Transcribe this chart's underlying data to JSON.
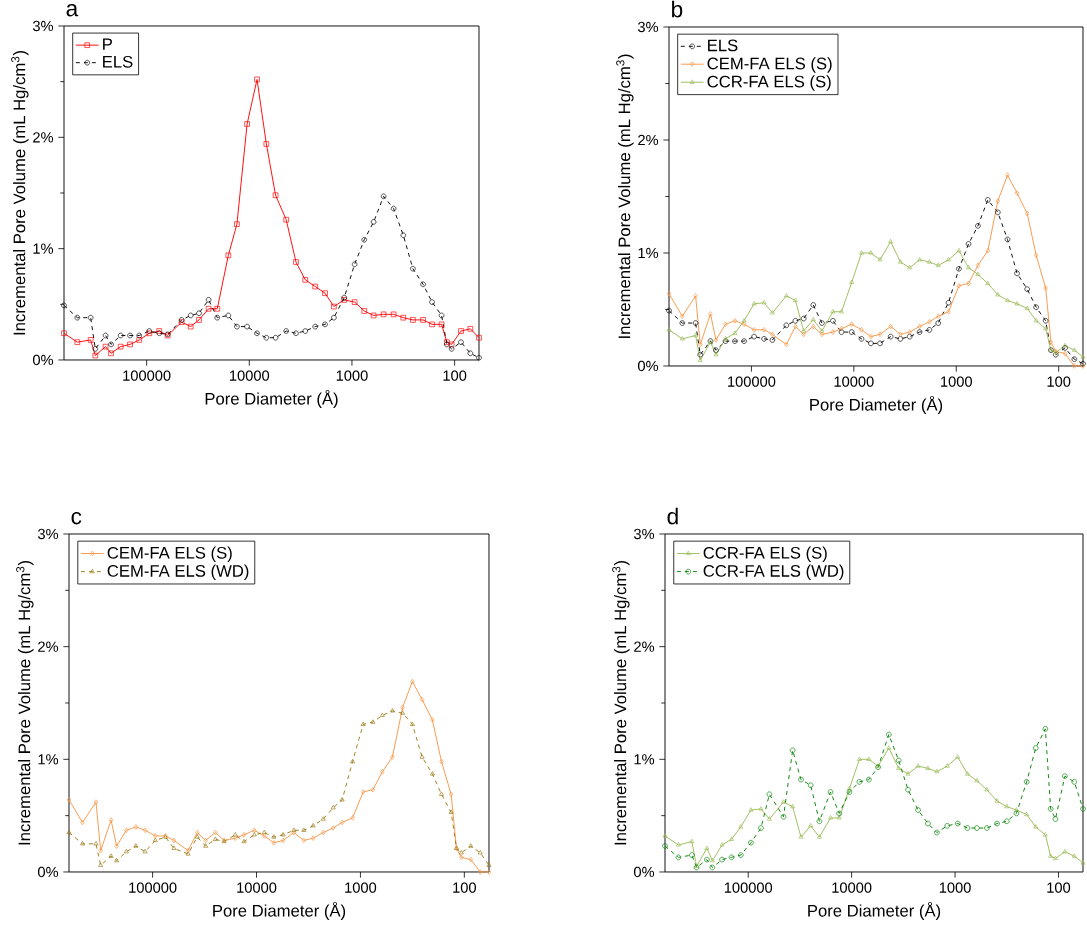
{
  "chart_data": [
    {
      "type": "line",
      "title": "a",
      "xlabel": "Pore Diameter (Å)",
      "ylabel": "Incremental Pore Volume (mL Hg/cm$^{3}$)",
      "log": "x",
      "legend": "top left",
      "x": [
        638000,
        473000,
        351000,
        316000,
        251000,
        222000,
        179000,
        145000,
        118000,
        94200,
        75300,
        62400,
        45600,
        37200,
        30900,
        24900,
        20500,
        16000,
        13200,
        10500,
        8410,
        6820,
        5550,
        4370,
        3510,
        2850,
        2280,
        1830,
        1500,
        1190,
        942,
        759,
        615,
        492,
        393,
        316,
        255,
        203,
        166,
        134,
        119,
        107,
        86.7,
        70.3,
        57.9
      ],
      "xlim": [
        638000,
        57.9
      ],
      "xticks": [
        100000,
        10000,
        1000,
        100
      ],
      "ylim": [
        0,
        3
      ],
      "yticks": [
        {
          "value": 0,
          "label": "0%"
        },
        {
          "value": 1,
          "label": "1%"
        },
        {
          "value": 2,
          "label": "2%"
        },
        {
          "value": 3,
          "label": "3%"
        }
      ],
      "series": [
        {
          "name": "P",
          "color": "#ff0000",
          "marker": "square",
          "line_style": "solid",
          "values": [
            0.24,
            0.16,
            0.18,
            0.04,
            0.12,
            0.06,
            0.12,
            0.14,
            0.18,
            0.24,
            0.26,
            0.22,
            0.34,
            0.3,
            0.36,
            0.46,
            0.46,
            0.94,
            1.22,
            2.12,
            2.52,
            1.94,
            1.48,
            1.26,
            0.88,
            0.72,
            0.66,
            0.6,
            0.48,
            0.54,
            0.52,
            0.44,
            0.4,
            0.41,
            0.41,
            0.38,
            0.36,
            0.36,
            0.32,
            0.32,
            0.16,
            0.14,
            0.26,
            0.28,
            0.2
          ]
        },
        {
          "name": "ELS",
          "color": "#000000",
          "marker": "circle",
          "line_style": "dashed",
          "values": [
            0.49,
            0.38,
            0.38,
            0.1,
            0.22,
            0.14,
            0.22,
            0.22,
            0.22,
            0.26,
            0.24,
            0.23,
            0.36,
            0.4,
            0.42,
            0.54,
            0.38,
            0.4,
            0.3,
            0.3,
            0.24,
            0.2,
            0.2,
            0.26,
            0.24,
            0.26,
            0.3,
            0.32,
            0.38,
            0.56,
            0.86,
            1.08,
            1.24,
            1.47,
            1.36,
            1.12,
            0.82,
            0.68,
            0.52,
            0.4,
            0.14,
            0.1,
            0.16,
            0.06,
            0.02
          ]
        }
      ]
    },
    {
      "type": "line",
      "title": "b",
      "xlabel": "Pore Diameter (Å)",
      "ylabel": "Incremental Pore Volume (mL Hg/cm$^{3}$)",
      "log": "x",
      "legend": "top left",
      "x": [
        638000,
        473000,
        351000,
        316000,
        251000,
        222000,
        179000,
        145000,
        118000,
        94200,
        75300,
        62400,
        45600,
        37200,
        30900,
        24900,
        20500,
        16000,
        13200,
        10500,
        8410,
        6820,
        5550,
        4370,
        3510,
        2850,
        2280,
        1830,
        1500,
        1190,
        942,
        759,
        615,
        492,
        393,
        316,
        255,
        203,
        166,
        134,
        119,
        107,
        86.7,
        70.3,
        57.9
      ],
      "xlim": [
        638000,
        57.9
      ],
      "xticks": [
        100000,
        10000,
        1000,
        100
      ],
      "ylim": [
        0,
        3
      ],
      "yticks": [
        {
          "value": 0,
          "label": "0%"
        },
        {
          "value": 1,
          "label": "1%"
        },
        {
          "value": 2,
          "label": "2%"
        },
        {
          "value": 3,
          "label": "3%"
        }
      ],
      "series": [
        {
          "name": "ELS",
          "color": "#000000",
          "marker": "circle",
          "line_style": "dashed",
          "values": [
            0.49,
            0.38,
            0.38,
            0.1,
            0.22,
            0.14,
            0.22,
            0.22,
            0.22,
            0.26,
            0.24,
            0.23,
            0.36,
            0.4,
            0.42,
            0.54,
            0.38,
            0.4,
            0.3,
            0.3,
            0.24,
            0.2,
            0.2,
            0.26,
            0.24,
            0.26,
            0.3,
            0.32,
            0.38,
            0.56,
            0.86,
            1.08,
            1.24,
            1.47,
            1.36,
            1.12,
            0.82,
            0.68,
            0.52,
            0.4,
            0.14,
            0.1,
            0.16,
            0.06,
            0.02
          ]
        },
        {
          "name": "CEM-FA ELS (S)",
          "color": "#f79646",
          "marker": "diamond",
          "line_style": "solid",
          "values": [
            0.64,
            0.44,
            0.62,
            0.19,
            0.46,
            0.23,
            0.37,
            0.4,
            0.37,
            0.32,
            0.32,
            0.28,
            0.19,
            0.35,
            0.28,
            0.35,
            0.28,
            0.3,
            0.33,
            0.37,
            0.32,
            0.26,
            0.28,
            0.35,
            0.28,
            0.3,
            0.35,
            0.39,
            0.44,
            0.48,
            0.71,
            0.73,
            0.89,
            1.02,
            1.46,
            1.69,
            1.53,
            1.35,
            0.98,
            0.69,
            0.21,
            0.13,
            0.11,
            0,
            0
          ]
        },
        {
          "name": "CCR-FA ELS (S)",
          "color": "#9bbb59",
          "marker": "triangle",
          "line_style": "solid",
          "values": [
            0.32,
            0.24,
            0.27,
            0.05,
            0.21,
            0.1,
            0.24,
            0.29,
            0.4,
            0.55,
            0.56,
            0.47,
            0.62,
            0.58,
            0.31,
            0.41,
            0.31,
            0.48,
            0.48,
            0.74,
            1.0,
            1.0,
            0.94,
            1.1,
            0.92,
            0.87,
            0.94,
            0.92,
            0.89,
            0.94,
            1.02,
            0.87,
            0.81,
            0.73,
            0.63,
            0.58,
            0.55,
            0.51,
            0.4,
            0.33,
            0.14,
            0.12,
            0.18,
            0.14,
            0.08
          ]
        }
      ]
    },
    {
      "type": "line",
      "title": "c",
      "xlabel": "Pore Diameter (Å)",
      "ylabel": "Incremental Pore Volume (mL Hg/cm$^{3}$)",
      "log": "x",
      "legend": "top left",
      "x": [
        638000,
        473000,
        351000,
        316000,
        251000,
        222000,
        179000,
        145000,
        118000,
        94200,
        75300,
        62400,
        45600,
        37200,
        30900,
        24900,
        20500,
        16000,
        13200,
        10500,
        8410,
        6820,
        5550,
        4370,
        3510,
        2850,
        2280,
        1830,
        1500,
        1190,
        942,
        759,
        615,
        492,
        393,
        316,
        255,
        203,
        166,
        134,
        119,
        107,
        86.7,
        70.3,
        57.9
      ],
      "xlim": [
        638000,
        57.9
      ],
      "xticks": [
        100000,
        10000,
        1000,
        100
      ],
      "ylim": [
        0,
        3
      ],
      "yticks": [
        {
          "value": 0,
          "label": "0%"
        },
        {
          "value": 1,
          "label": "1%"
        },
        {
          "value": 2,
          "label": "2%"
        },
        {
          "value": 3,
          "label": "3%"
        }
      ],
      "series": [
        {
          "name": "CEM-FA ELS (S)",
          "color": "#f79646",
          "marker": "diamond",
          "line_style": "solid",
          "values": [
            0.64,
            0.44,
            0.62,
            0.19,
            0.46,
            0.23,
            0.37,
            0.4,
            0.37,
            0.32,
            0.32,
            0.28,
            0.19,
            0.35,
            0.28,
            0.35,
            0.28,
            0.3,
            0.33,
            0.37,
            0.32,
            0.26,
            0.28,
            0.35,
            0.28,
            0.3,
            0.35,
            0.39,
            0.44,
            0.48,
            0.71,
            0.73,
            0.89,
            1.02,
            1.46,
            1.69,
            1.53,
            1.35,
            0.98,
            0.69,
            0.21,
            0.13,
            0.11,
            0,
            0
          ]
        },
        {
          "name": "CEM-FA ELS (WD)",
          "color": "#9c7a14",
          "marker": "triangle",
          "line_style": "dashed",
          "values": [
            0.35,
            0.25,
            0.25,
            0.06,
            0.14,
            0.1,
            0.18,
            0.23,
            0.18,
            0.28,
            0.31,
            0.21,
            0.16,
            0.31,
            0.23,
            0.29,
            0.27,
            0.33,
            0.27,
            0.33,
            0.35,
            0.31,
            0.33,
            0.37,
            0.37,
            0.41,
            0.47,
            0.57,
            0.64,
            0.98,
            1.31,
            1.33,
            1.39,
            1.43,
            1.41,
            1.31,
            1.02,
            0.87,
            0.69,
            0.53,
            0.21,
            0.17,
            0.23,
            0.17,
            0.06
          ]
        }
      ]
    },
    {
      "type": "line",
      "title": "d",
      "xlabel": "Pore Diameter (Å)",
      "ylabel": "Incremental Pore Volume (mL Hg/cm$^{3}$)",
      "log": "x",
      "legend": "top left",
      "x": [
        638000,
        473000,
        351000,
        316000,
        251000,
        222000,
        179000,
        145000,
        118000,
        94200,
        75300,
        62400,
        45600,
        37200,
        30900,
        24900,
        20500,
        16000,
        13200,
        10500,
        8410,
        6820,
        5550,
        4370,
        3510,
        2850,
        2280,
        1830,
        1500,
        1190,
        942,
        759,
        615,
        492,
        393,
        316,
        255,
        203,
        166,
        134,
        119,
        107,
        86.7,
        70.3,
        57.9
      ],
      "xlim": [
        638000,
        57.9
      ],
      "xticks": [
        100000,
        10000,
        1000,
        100
      ],
      "ylim": [
        0,
        3
      ],
      "yticks": [
        {
          "value": 0,
          "label": "0%"
        },
        {
          "value": 1,
          "label": "1%"
        },
        {
          "value": 2,
          "label": "2%"
        },
        {
          "value": 3,
          "label": "3%"
        }
      ],
      "series": [
        {
          "name": "CCR-FA ELS (S)",
          "color": "#9bbb59",
          "marker": "triangle",
          "line_style": "solid",
          "values": [
            0.32,
            0.24,
            0.27,
            0.05,
            0.21,
            0.1,
            0.24,
            0.29,
            0.4,
            0.55,
            0.56,
            0.47,
            0.62,
            0.58,
            0.31,
            0.41,
            0.31,
            0.48,
            0.48,
            0.74,
            1.0,
            1.0,
            0.94,
            1.1,
            0.92,
            0.87,
            0.94,
            0.92,
            0.89,
            0.94,
            1.02,
            0.87,
            0.81,
            0.73,
            0.63,
            0.58,
            0.55,
            0.51,
            0.4,
            0.33,
            0.14,
            0.12,
            0.18,
            0.14,
            0.08
          ]
        },
        {
          "name": "CCR-FA ELS (WD)",
          "color": "#008000",
          "marker": "circle",
          "line_style": "dashed",
          "values": [
            0.23,
            0.13,
            0.15,
            0.04,
            0.11,
            0.04,
            0.11,
            0.13,
            0.15,
            0.26,
            0.39,
            0.69,
            0.49,
            1.08,
            0.82,
            0.77,
            0.45,
            0.71,
            0.52,
            0.71,
            0.8,
            0.82,
            0.93,
            1.22,
            0.99,
            0.73,
            0.55,
            0.43,
            0.35,
            0.41,
            0.43,
            0.39,
            0.39,
            0.39,
            0.43,
            0.45,
            0.52,
            0.8,
            1.1,
            1.27,
            0.56,
            0.47,
            0.85,
            0.8,
            0.56
          ]
        }
      ]
    }
  ]
}
